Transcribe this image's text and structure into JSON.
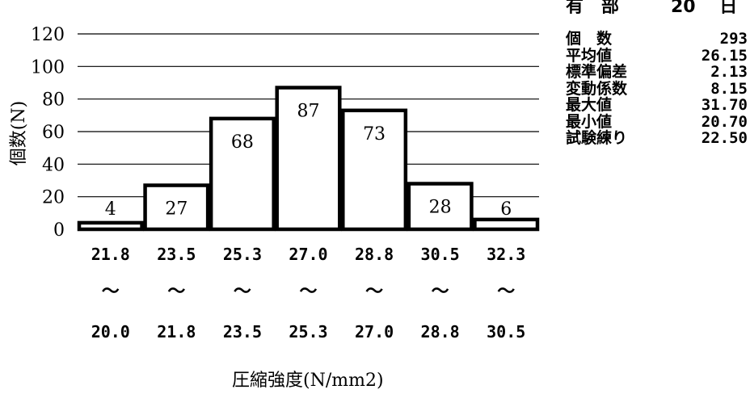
{
  "chart_data": {
    "type": "bar",
    "categories": [
      {
        "upper": "21.8",
        "sep": "～",
        "lower": "20.0"
      },
      {
        "upper": "23.5",
        "sep": "～",
        "lower": "21.8"
      },
      {
        "upper": "25.3",
        "sep": "～",
        "lower": "23.5"
      },
      {
        "upper": "27.0",
        "sep": "～",
        "lower": "25.3"
      },
      {
        "upper": "28.8",
        "sep": "～",
        "lower": "27.0"
      },
      {
        "upper": "30.5",
        "sep": "～",
        "lower": "28.8"
      },
      {
        "upper": "32.3",
        "sep": "～",
        "lower": "30.5"
      }
    ],
    "values": [
      4,
      27,
      68,
      87,
      73,
      28,
      6
    ],
    "data_labels": [
      "4",
      "27",
      "68",
      "87",
      "73",
      "28",
      "6"
    ],
    "ylabel": "個数(N)",
    "xlabel": "圧縮強度(N/mm2)",
    "ylim": [
      0,
      120
    ],
    "yticks": [
      "0",
      "20",
      "40",
      "60",
      "80",
      "100",
      "120"
    ],
    "grid": true,
    "bar_fill": "#ffffff",
    "bar_stroke": "#000000"
  },
  "stats": [
    {
      "label": "個　数",
      "value": "293"
    },
    {
      "label": "平均値",
      "value": "26.15"
    },
    {
      "label": "標準偏差",
      "value": "2.13"
    },
    {
      "label": "変動係数",
      "value": "8.15"
    },
    {
      "label": "最大値",
      "value": "31.70"
    },
    {
      "label": "最小値",
      "value": "20.70"
    },
    {
      "label": "試験練り",
      "value": "22.50"
    }
  ],
  "corner_text": {
    "left": "有　部",
    "right": "20　  日"
  }
}
